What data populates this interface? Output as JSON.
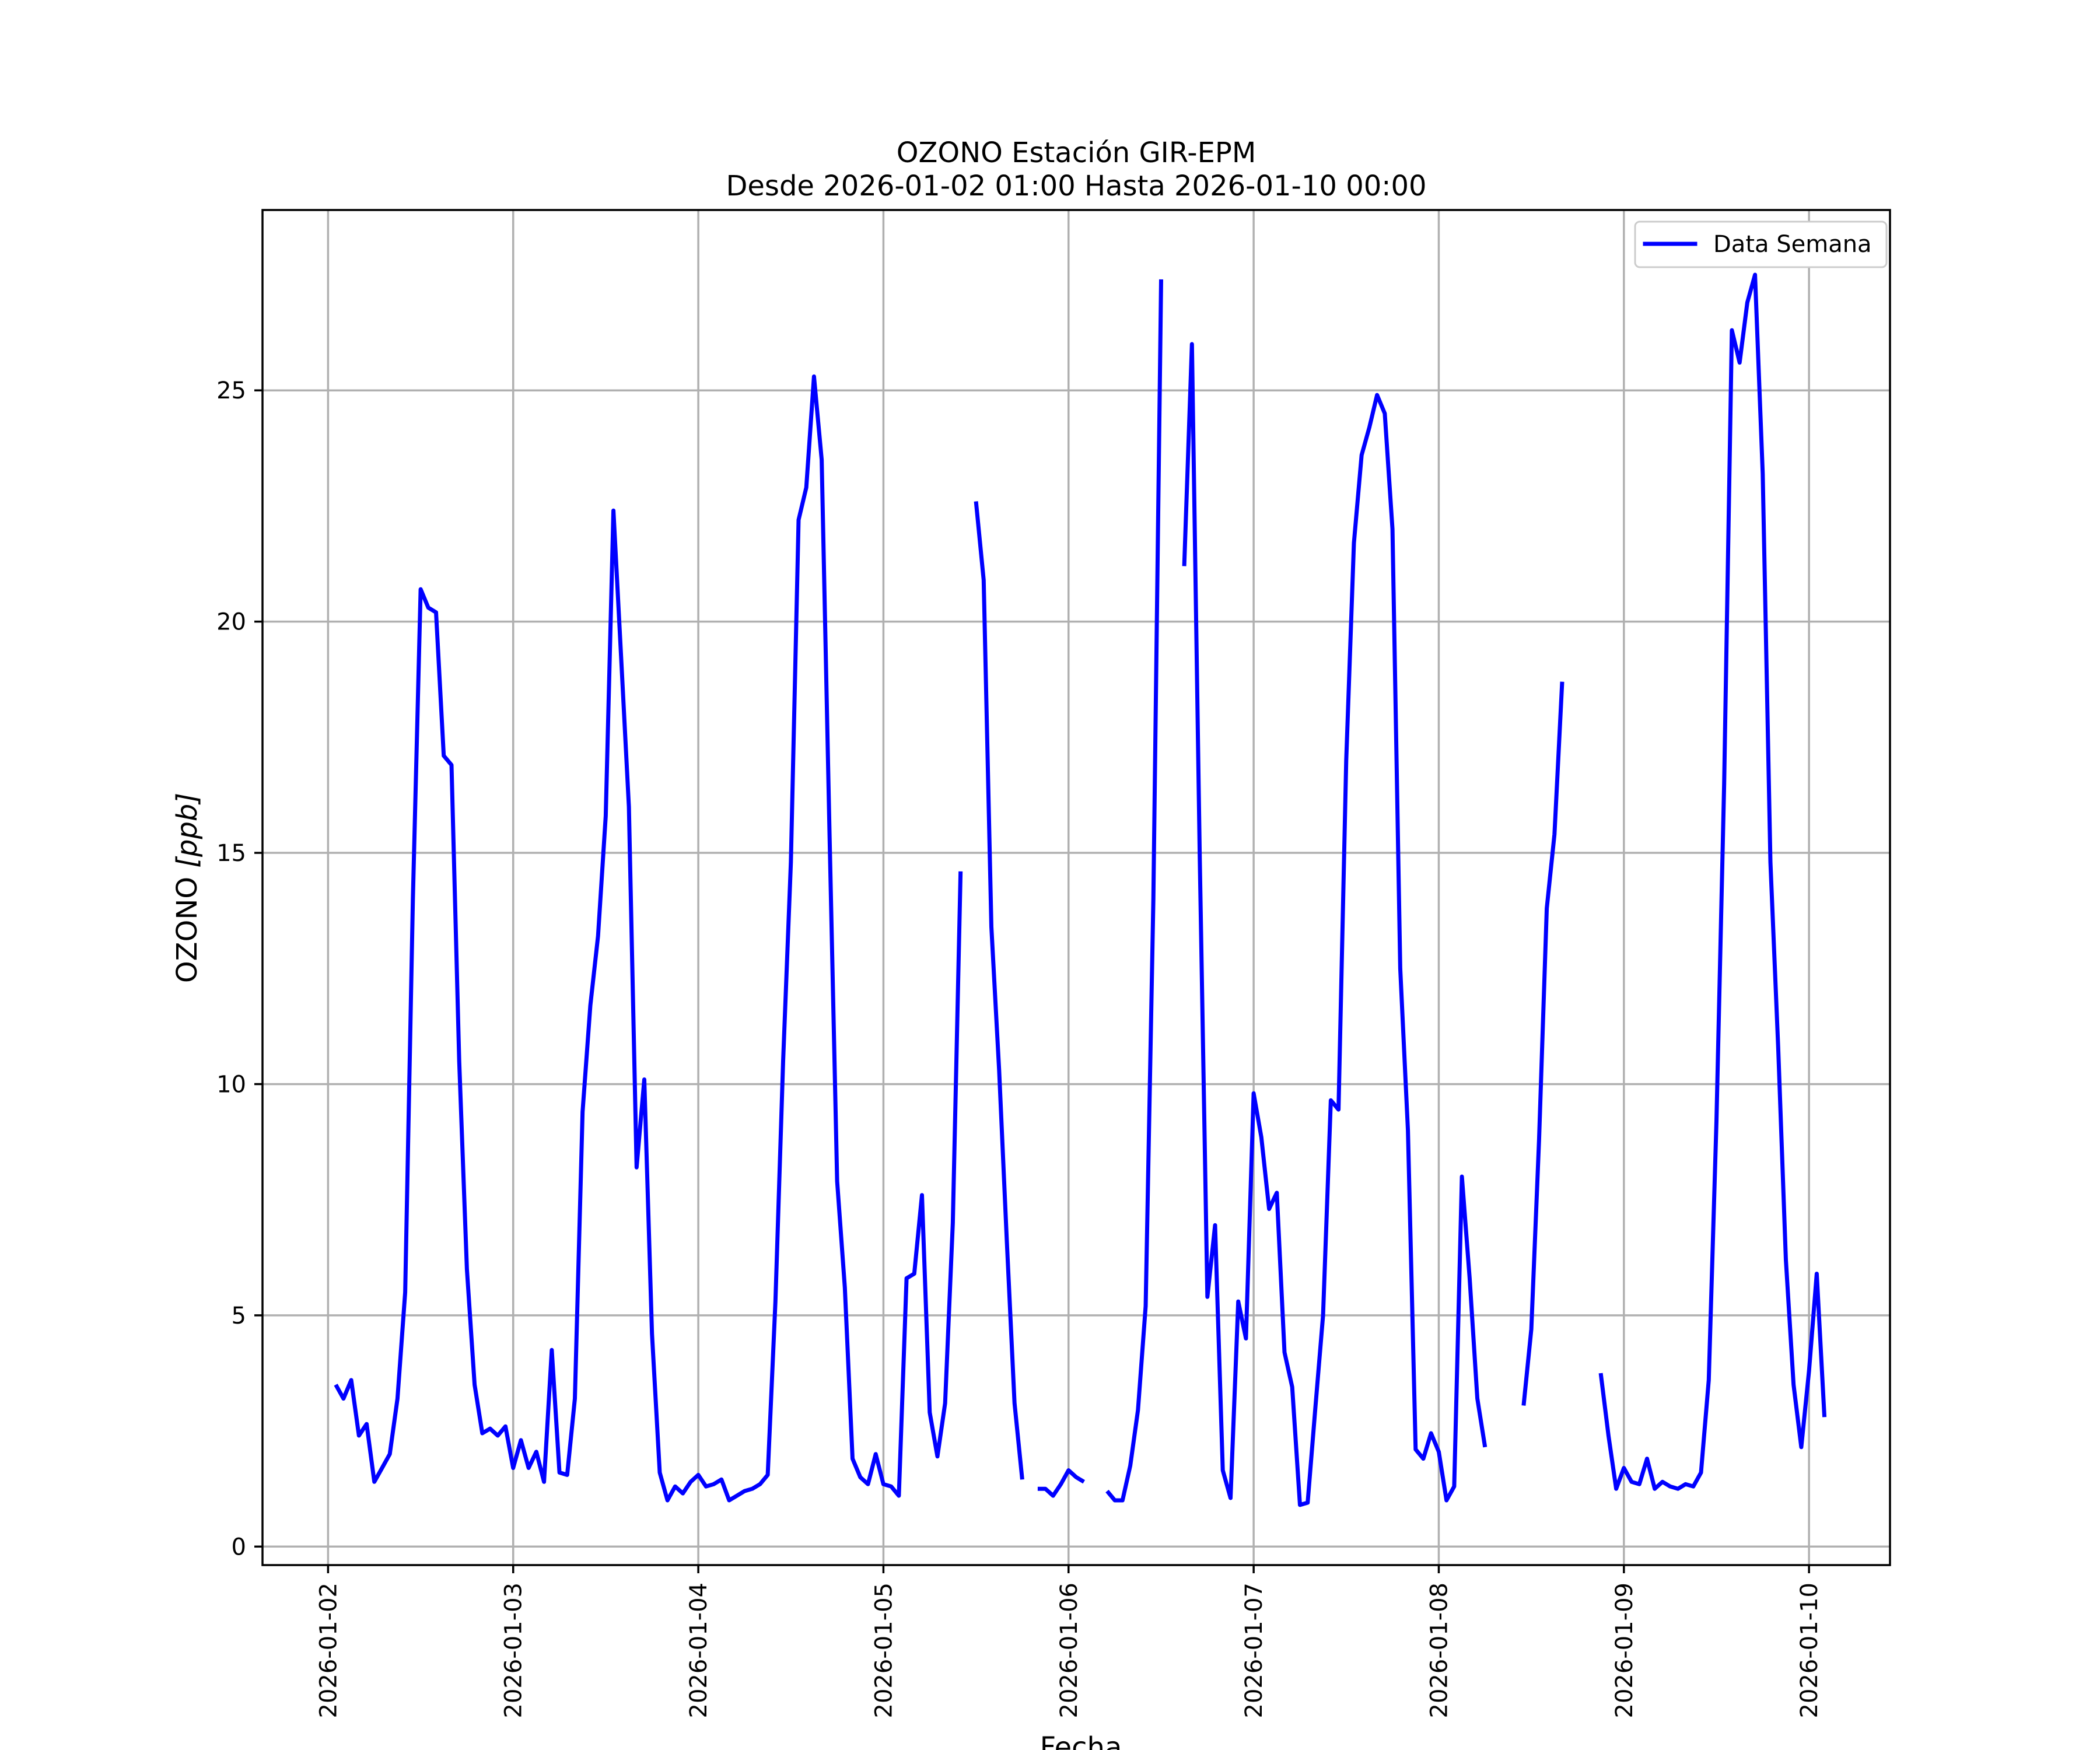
{
  "chart_data": {
    "type": "line",
    "title": "OZONO Estación GIR-EPM",
    "subtitle": "Desde 2026-01-02 01:00 Hasta 2026-01-10 00:00",
    "xlabel": "Fecha",
    "ylabel": "OZONO [ppb]",
    "ylabel_main": "OZONO ",
    "ylabel_unit": "[ppb]",
    "x_ticks": [
      "2026-01-02",
      "2026-01-03",
      "2026-01-04",
      "2026-01-05",
      "2026-01-06",
      "2026-01-07",
      "2026-01-08",
      "2026-01-09",
      "2026-01-10"
    ],
    "y_ticks": [
      0,
      5,
      10,
      15,
      20,
      25
    ],
    "xlim": [
      "2026-01-01T15:30",
      "2026-01-10T10:30"
    ],
    "ylim": [
      -0.4,
      28.9
    ],
    "grid": true,
    "legend_position": "top-right",
    "line_color": "#0000ff",
    "series": [
      {
        "name": "Data Semana",
        "x_start": "2026-01-02T01:00",
        "step_hours": 1,
        "values": [
          3.5,
          3.2,
          3.6,
          2.4,
          2.65,
          1.4,
          1.7,
          2.0,
          3.2,
          5.5,
          14.0,
          20.7,
          20.3,
          20.2,
          17.1,
          16.9,
          10.5,
          6.0,
          3.5,
          2.45,
          2.55,
          2.4,
          2.6,
          1.7,
          2.3,
          1.7,
          2.05,
          1.4,
          4.25,
          1.6,
          1.55,
          3.2,
          9.4,
          11.7,
          13.2,
          15.8,
          22.4,
          19.2,
          16.0,
          8.2,
          10.1,
          4.6,
          1.6,
          1.0,
          1.3,
          1.15,
          1.4,
          1.55,
          1.3,
          1.35,
          1.45,
          1.0,
          1.1,
          1.2,
          1.25,
          1.35,
          1.55,
          5.3,
          10.5,
          14.8,
          22.2,
          22.9,
          25.3,
          23.5,
          15.5,
          7.9,
          5.6,
          1.9,
          1.5,
          1.35,
          2.0,
          1.35,
          1.3,
          1.1,
          5.8,
          5.9,
          7.6,
          2.9,
          1.95,
          3.1,
          7.0,
          14.6,
          null,
          22.6,
          20.9,
          13.4,
          10.3,
          6.6,
          3.1,
          1.45,
          null,
          1.25,
          1.25,
          1.1,
          1.35,
          1.65,
          1.5,
          1.4,
          null,
          null,
          1.2,
          1.0,
          1.0,
          1.75,
          2.95,
          5.2,
          14.0,
          27.4,
          null,
          null,
          21.2,
          26.0,
          15.0,
          5.4,
          6.95,
          1.65,
          1.05,
          5.3,
          4.5,
          9.8,
          8.85,
          7.3,
          7.65,
          4.2,
          3.45,
          0.9,
          0.95,
          3.0,
          5.0,
          9.65,
          9.45,
          17.0,
          21.7,
          23.6,
          24.2,
          24.9,
          24.5,
          22.0,
          12.5,
          9.0,
          2.1,
          1.9,
          2.45,
          2.05,
          1.0,
          1.3,
          8.0,
          5.8,
          3.2,
          2.15,
          null,
          null,
          null,
          null,
          3.05,
          4.7,
          8.8,
          13.8,
          15.4,
          18.7,
          null,
          null,
          null,
          null,
          3.75,
          2.4,
          1.25,
          1.7,
          1.4,
          1.35,
          1.9,
          1.25,
          1.4,
          1.3,
          1.25,
          1.35,
          1.3,
          1.6,
          3.6,
          9.2,
          16.5,
          26.3,
          25.6,
          26.9,
          27.5,
          23.2,
          14.8,
          10.8,
          6.2,
          3.5,
          2.15,
          3.8,
          5.9,
          2.8
        ]
      }
    ]
  }
}
